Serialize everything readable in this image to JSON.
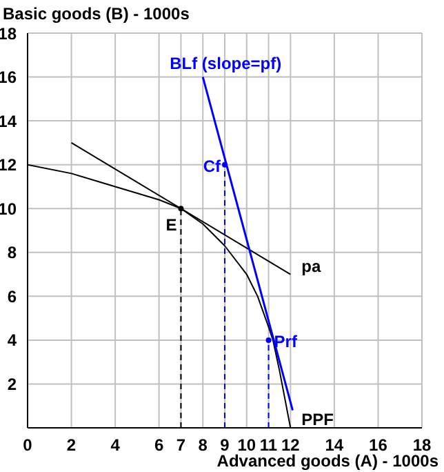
{
  "chart_data": {
    "type": "line",
    "xlabel": "Advanced goods (A) - 1000s",
    "ylabel": "Basic goods (B) - 1000s",
    "xlim": [
      0,
      18
    ],
    "ylim": [
      0,
      18
    ],
    "xticks": [
      0,
      2,
      4,
      6,
      7,
      8,
      9,
      10,
      11,
      12,
      14,
      16,
      18
    ],
    "yticks": [
      2,
      4,
      6,
      8,
      10,
      12,
      14,
      16,
      18
    ],
    "grid": true,
    "series": [
      {
        "name": "PPF",
        "color": "#000000",
        "x": [
          0,
          2,
          4,
          6,
          7,
          8,
          9,
          10,
          10.5,
          11,
          11.2,
          11.5,
          12
        ],
        "values": [
          12,
          11.6,
          11,
          10.4,
          10,
          9.3,
          8.3,
          7,
          6,
          4.6,
          4,
          2.6,
          0
        ]
      },
      {
        "name": "pa",
        "color": "#000000",
        "x": [
          2,
          12
        ],
        "values": [
          13,
          7
        ]
      },
      {
        "name": "BLf (slope=pf)",
        "color": "#0000ff",
        "x": [
          8,
          12.1
        ],
        "values": [
          16,
          0.8
        ]
      },
      {
        "color": "#000000",
        "line_style": "dashed",
        "x": [
          7,
          7
        ],
        "values": [
          0,
          10
        ]
      },
      {
        "color": "#0000ff",
        "line_style": "dashed",
        "x": [
          9,
          9
        ],
        "values": [
          0,
          12
        ]
      },
      {
        "color": "#0000ff",
        "line_style": "dashed",
        "x": [
          11,
          11
        ],
        "values": [
          0,
          4
        ]
      },
      {
        "type": "scatter",
        "x": [
          7,
          9,
          11
        ],
        "values": [
          10,
          12,
          4
        ],
        "colors": [
          "#000000",
          "#0000ff",
          "#0000ff"
        ]
      }
    ],
    "annotations": [
      {
        "text": "E",
        "x": 7,
        "y": 10
      },
      {
        "text": "Cf",
        "x": 9,
        "y": 12
      },
      {
        "text": "Prf",
        "x": 11,
        "y": 4
      }
    ]
  }
}
